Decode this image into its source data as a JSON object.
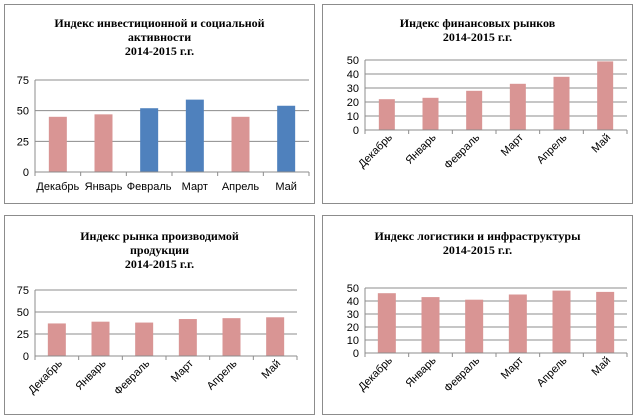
{
  "chart_data": [
    {
      "type": "bar",
      "title_lines": [
        "Индекс инвестиционной  и социальной",
        "активности",
        "2014-2015 г.г."
      ],
      "categories": [
        "Декабрь",
        "Январь",
        "Февраль",
        "Март",
        "Апрель",
        "Май"
      ],
      "values": [
        45,
        47,
        52,
        59,
        45,
        54
      ],
      "bar_colors": [
        "#d99594",
        "#d99594",
        "#4f81bd",
        "#4f81bd",
        "#d99594",
        "#4f81bd"
      ],
      "ylim": [
        0,
        75
      ],
      "yticks": [
        0,
        25,
        50,
        75
      ],
      "grid": true,
      "xlabel_rotated": false
    },
    {
      "type": "bar",
      "title_lines": [
        "Индекс финансовых  рынков",
        "2014-2015 г.г."
      ],
      "categories": [
        "Декабрь",
        "Январь",
        "Февраль",
        "Март",
        "Апрель",
        "Май"
      ],
      "values": [
        22,
        23,
        28,
        33,
        38,
        49
      ],
      "bar_colors": [
        "#d99594",
        "#d99594",
        "#d99594",
        "#d99594",
        "#d99594",
        "#d99594"
      ],
      "ylim": [
        0,
        50
      ],
      "yticks": [
        0,
        10,
        20,
        30,
        40,
        50
      ],
      "grid": true,
      "xlabel_rotated": true
    },
    {
      "type": "bar",
      "title_lines": [
        "Индекс рынка  производимой",
        "продукции",
        "2014-2015 г.г."
      ],
      "categories": [
        "Декабрь",
        "Январь",
        "Февраль",
        "Март",
        "Апрель",
        "Май"
      ],
      "values": [
        37,
        39,
        38,
        42,
        43,
        44
      ],
      "bar_colors": [
        "#d99594",
        "#d99594",
        "#d99594",
        "#d99594",
        "#d99594",
        "#d99594"
      ],
      "ylim": [
        0,
        75
      ],
      "yticks": [
        0,
        25,
        50,
        75
      ],
      "grid": true,
      "xlabel_rotated": true
    },
    {
      "type": "bar",
      "title_lines": [
        "Индекс  логистики  и инфраструктуры",
        "2014-2015 г.г."
      ],
      "categories": [
        "Декабрь",
        "Январь",
        "Февраль",
        "Март",
        "Апрель",
        "Май"
      ],
      "values": [
        46,
        43,
        41,
        45,
        48,
        47
      ],
      "bar_colors": [
        "#d99594",
        "#d99594",
        "#d99594",
        "#d99594",
        "#d99594",
        "#d99594"
      ],
      "ylim": [
        0,
        50
      ],
      "yticks": [
        0,
        10,
        20,
        30,
        40,
        50
      ],
      "grid": true,
      "xlabel_rotated": true
    }
  ]
}
